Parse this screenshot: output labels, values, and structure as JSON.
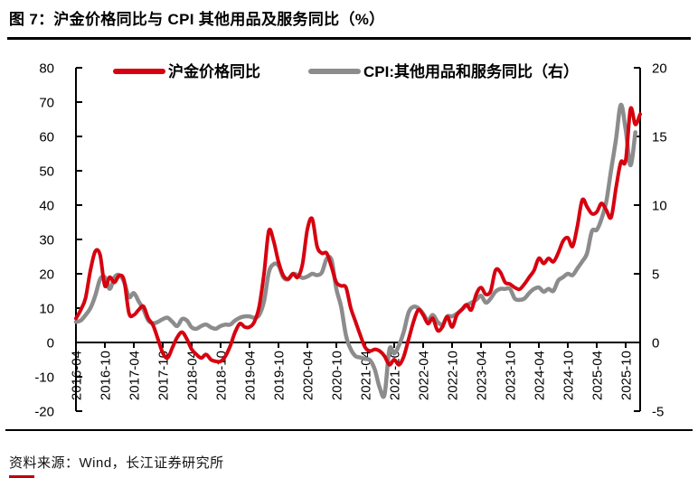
{
  "figure": {
    "title": "图 7：沪金价格同比与 CPI 其他用品及服务同比（%）",
    "source": "资料来源：Wind，长江证券研究所"
  },
  "chart_data": {
    "type": "line",
    "legend_position": "top",
    "grid": false,
    "x": [
      "2016-04",
      "2016-05",
      "2016-06",
      "2016-07",
      "2016-08",
      "2016-09",
      "2016-10",
      "2016-11",
      "2016-12",
      "2017-01",
      "2017-02",
      "2017-03",
      "2017-04",
      "2017-05",
      "2017-06",
      "2017-07",
      "2017-08",
      "2017-09",
      "2017-10",
      "2017-11",
      "2017-12",
      "2018-01",
      "2018-02",
      "2018-03",
      "2018-04",
      "2018-05",
      "2018-06",
      "2018-07",
      "2018-08",
      "2018-09",
      "2018-10",
      "2018-11",
      "2018-12",
      "2019-01",
      "2019-02",
      "2019-03",
      "2019-04",
      "2019-05",
      "2019-06",
      "2019-07",
      "2019-08",
      "2019-09",
      "2019-10",
      "2019-11",
      "2019-12",
      "2020-01",
      "2020-02",
      "2020-03",
      "2020-04",
      "2020-05",
      "2020-06",
      "2020-07",
      "2020-08",
      "2020-09",
      "2020-10",
      "2020-11",
      "2020-12",
      "2021-01",
      "2021-02",
      "2021-03",
      "2021-04",
      "2021-05",
      "2021-06",
      "2021-07",
      "2021-08",
      "2021-09",
      "2021-10",
      "2021-11",
      "2021-12",
      "2022-01",
      "2022-02",
      "2022-03",
      "2022-04",
      "2022-05",
      "2022-06",
      "2022-07",
      "2022-08",
      "2022-09",
      "2022-10",
      "2022-11",
      "2022-12",
      "2023-01",
      "2023-02",
      "2023-03",
      "2023-04",
      "2023-05",
      "2023-06",
      "2023-07",
      "2023-08",
      "2023-09",
      "2023-10",
      "2023-11",
      "2023-12",
      "2024-01",
      "2024-02",
      "2024-03",
      "2024-04",
      "2024-05",
      "2024-06",
      "2024-07",
      "2024-08",
      "2024-09",
      "2024-10",
      "2024-11",
      "2024-12",
      "2025-01",
      "2025-02",
      "2025-03",
      "2025-04",
      "2025-05",
      "2025-06",
      "2025-07",
      "2025-08",
      "2025-09",
      "2025-10",
      "2025-11",
      "2025-12",
      "2026-01"
    ],
    "x_tick_every_n_months": 6,
    "left_axis": {
      "min": -20,
      "max": 80,
      "step": 10
    },
    "right_axis": {
      "min": -5,
      "max": 20,
      "step": 5
    },
    "series": [
      {
        "name": "沪金价格同比",
        "axis": "left",
        "color": "#d7000f",
        "line_width": 4,
        "values": [
          7,
          9.5,
          13,
          21,
          26.5,
          25.5,
          16.5,
          19,
          17.5,
          19.5,
          18,
          8.5,
          8,
          9.5,
          10.5,
          7,
          5,
          1,
          -3,
          -4.5,
          -1.5,
          1.5,
          3,
          1,
          -2,
          -3.5,
          -4.5,
          -3.5,
          -5,
          -5.5,
          -5.5,
          -4,
          -1,
          3,
          5.5,
          4.5,
          4.5,
          6,
          10.5,
          20,
          32.5,
          29.5,
          23.5,
          19.5,
          18.5,
          20,
          19,
          23,
          33,
          36,
          28,
          26,
          26,
          22,
          17.5,
          16.5,
          16,
          10,
          6,
          2,
          -1.5,
          -2.5,
          -2,
          -2.5,
          -4,
          -6.5,
          -5,
          -6.5,
          -4,
          1,
          6,
          9.5,
          8,
          5.5,
          7,
          3.5,
          4.5,
          7.5,
          4.5,
          8,
          9.5,
          11,
          9.5,
          14,
          16,
          14,
          15,
          21,
          20.5,
          17.5,
          17,
          16,
          15.5,
          17,
          19,
          21,
          24.5,
          23,
          24.5,
          23.5,
          26,
          29.5,
          30.5,
          28,
          34,
          41.5,
          39.5,
          37.5,
          38,
          40.5,
          38.5,
          36.5,
          45,
          52.5,
          53,
          68,
          63.5,
          66.5
        ]
      },
      {
        "name": "CPI:其他用品和服务同比（右）",
        "axis": "right",
        "color": "#8c8c8c",
        "line_width": 4.5,
        "values": [
          1.5,
          1.6,
          2.0,
          2.5,
          3.4,
          4.6,
          4.75,
          3.9,
          4.75,
          4.9,
          4.4,
          3.3,
          3.6,
          3.0,
          2.4,
          1.6,
          1.4,
          1.5,
          1.7,
          1.8,
          1.5,
          1.2,
          1.7,
          1.6,
          1.1,
          1.0,
          1.2,
          1.3,
          1.1,
          1.0,
          1.2,
          1.3,
          1.3,
          1.6,
          1.8,
          1.9,
          1.9,
          1.8,
          2.0,
          3.0,
          5.1,
          5.7,
          5.6,
          4.75,
          4.6,
          5.0,
          4.9,
          4.7,
          4.8,
          5.0,
          4.9,
          5.1,
          6.1,
          6.0,
          3.9,
          2.6,
          0.5,
          -0.5,
          -1.0,
          -1.1,
          -1.2,
          -1.3,
          -2.0,
          -3.3,
          -3.8,
          -0.5,
          -0.8,
          -0.2,
          0.8,
          2.2,
          2.6,
          2.5,
          2.1,
          1.6,
          2.0,
          1.5,
          1.3,
          1.9,
          1.9,
          2.1,
          2.4,
          2.7,
          2.9,
          3.1,
          3.4,
          2.9,
          3.2,
          3.7,
          3.9,
          3.9,
          3.9,
          3.2,
          3.1,
          3.2,
          3.6,
          3.9,
          4.0,
          3.7,
          3.9,
          3.75,
          4.5,
          4.75,
          5.0,
          4.9,
          5.4,
          5.9,
          6.5,
          8.1,
          8.2,
          9.0,
          10.3,
          12.6,
          14.8,
          17.3,
          15.5,
          12.9,
          15.3,
          null
        ]
      }
    ]
  }
}
